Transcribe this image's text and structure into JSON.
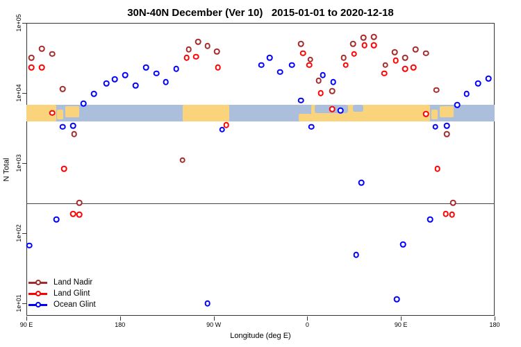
{
  "title": "30N-40N December (Ver 10)   2015-01-01 to 2020-12-18",
  "legend": {
    "items": [
      {
        "label": "Land Nadir",
        "color": "#A52A2A"
      },
      {
        "label": "Land Glint",
        "color": "#FF0000"
      },
      {
        "label": "Ocean Glint",
        "color": "#0000FF"
      }
    ]
  },
  "chart_data": {
    "type": "scatter",
    "title": "30N-40N December (Ver 10)   2015-01-01 to 2020-12-18",
    "x_axis": {
      "label": "Longitude (deg E)",
      "note": "axis starts at 90E and runs eastward 450 degrees (90E segment repeated)",
      "span_deg": 450,
      "ticks": [
        {
          "deg": 0,
          "label": "90 E"
        },
        {
          "deg": 90,
          "label": "180"
        },
        {
          "deg": 180,
          "label": "90 W"
        },
        {
          "deg": 270,
          "label": "0"
        },
        {
          "deg": 360,
          "label": "90 E"
        },
        {
          "deg": 450,
          "label": "180"
        }
      ]
    },
    "y_axis": {
      "label": "N Total",
      "scale": "log10",
      "ticks": [
        {
          "value": 100000,
          "label": "1e+05"
        },
        {
          "value": 10000,
          "label": "1e+04"
        },
        {
          "value": 1000,
          "label": "1e+03"
        },
        {
          "value": 100,
          "label": "1e+02"
        },
        {
          "value": 10,
          "label": "1e+01"
        }
      ]
    },
    "ref_line_value": 265,
    "map_band": {
      "v_top": 6800,
      "v_bottom": 3900,
      "ocean_color": "#ABBFDC",
      "land_color": "#FAD47C",
      "land_rects_deg_frac": [
        [
          0,
          28.7,
          0,
          1
        ],
        [
          29.4,
          35.4,
          0.3,
          0.85
        ],
        [
          37.4,
          50.7,
          0.08,
          0.75
        ],
        [
          150.2,
          195.0,
          0,
          1
        ],
        [
          261.7,
          274.0,
          0.55,
          1
        ],
        [
          274.0,
          388.0,
          0,
          1
        ],
        [
          389.5,
          395.5,
          0.3,
          0.85
        ],
        [
          397.5,
          410.5,
          0.08,
          0.75
        ]
      ],
      "sea_rects_deg_frac": [
        [
          277.0,
          309.0,
          0,
          0.5
        ],
        [
          313.8,
          323.8,
          0,
          0.4
        ]
      ]
    },
    "points_format": "[degrees east of left edge (90E), N Total]",
    "series": [
      {
        "name": "Land Nadir",
        "color": "#A52A2A",
        "points": [
          [
            5,
            32000
          ],
          [
            15,
            43000
          ],
          [
            25,
            36000
          ],
          [
            35,
            11400
          ],
          [
            46,
            2600
          ],
          [
            51,
            271
          ],
          [
            150,
            1100
          ],
          [
            156,
            42000
          ],
          [
            165,
            54000
          ],
          [
            174,
            47000
          ],
          [
            183,
            39000
          ],
          [
            264,
            50000
          ],
          [
            273,
            30000
          ],
          [
            281,
            15000
          ],
          [
            294,
            10700
          ],
          [
            305,
            32000
          ],
          [
            314,
            50000
          ],
          [
            324,
            62000
          ],
          [
            334,
            63000
          ],
          [
            345,
            25000
          ],
          [
            354,
            38000
          ],
          [
            364,
            32000
          ],
          [
            374,
            42000
          ],
          [
            384,
            37000
          ],
          [
            394,
            11000
          ],
          [
            404,
            2600
          ],
          [
            410,
            271
          ]
        ]
      },
      {
        "name": "Land Glint",
        "color": "#FF0000",
        "points": [
          [
            5,
            23000
          ],
          [
            15,
            23000
          ],
          [
            25,
            5200
          ],
          [
            36,
            830
          ],
          [
            45,
            188
          ],
          [
            51,
            184
          ],
          [
            154,
            32000
          ],
          [
            163,
            33000
          ],
          [
            184,
            23000
          ],
          [
            192,
            3500
          ],
          [
            266,
            37000
          ],
          [
            272,
            25000
          ],
          [
            283,
            10000
          ],
          [
            294,
            5900
          ],
          [
            307,
            25000
          ],
          [
            315,
            36000
          ],
          [
            325,
            48000
          ],
          [
            334,
            48000
          ],
          [
            344,
            19000
          ],
          [
            355,
            29000
          ],
          [
            364,
            22000
          ],
          [
            372,
            23000
          ],
          [
            384,
            5000
          ],
          [
            395,
            830
          ],
          [
            403,
            188
          ],
          [
            409,
            184
          ]
        ]
      },
      {
        "name": "Ocean Glint",
        "color": "#0000FF",
        "points": [
          [
            3,
            67
          ],
          [
            29,
            157
          ],
          [
            35,
            3300
          ],
          [
            45,
            3400
          ],
          [
            55,
            7100
          ],
          [
            65,
            9700
          ],
          [
            77,
            13700
          ],
          [
            85,
            15700
          ],
          [
            95,
            18000
          ],
          [
            105,
            12800
          ],
          [
            115,
            23000
          ],
          [
            125,
            19000
          ],
          [
            134,
            14400
          ],
          [
            144,
            22000
          ],
          [
            174,
            10
          ],
          [
            188,
            3000
          ],
          [
            226,
            25000
          ],
          [
            234,
            32000
          ],
          [
            244,
            20000
          ],
          [
            255,
            25000
          ],
          [
            264,
            7800
          ],
          [
            274,
            3300
          ],
          [
            285,
            18000
          ],
          [
            295,
            14400
          ],
          [
            302,
            5600
          ],
          [
            317,
            49
          ],
          [
            322,
            525
          ],
          [
            356,
            11.4
          ],
          [
            362,
            69
          ],
          [
            388,
            157
          ],
          [
            393,
            3300
          ],
          [
            404,
            3400
          ],
          [
            414,
            6800
          ],
          [
            423,
            9700
          ],
          [
            434,
            13700
          ],
          [
            444,
            16000
          ]
        ]
      }
    ]
  }
}
